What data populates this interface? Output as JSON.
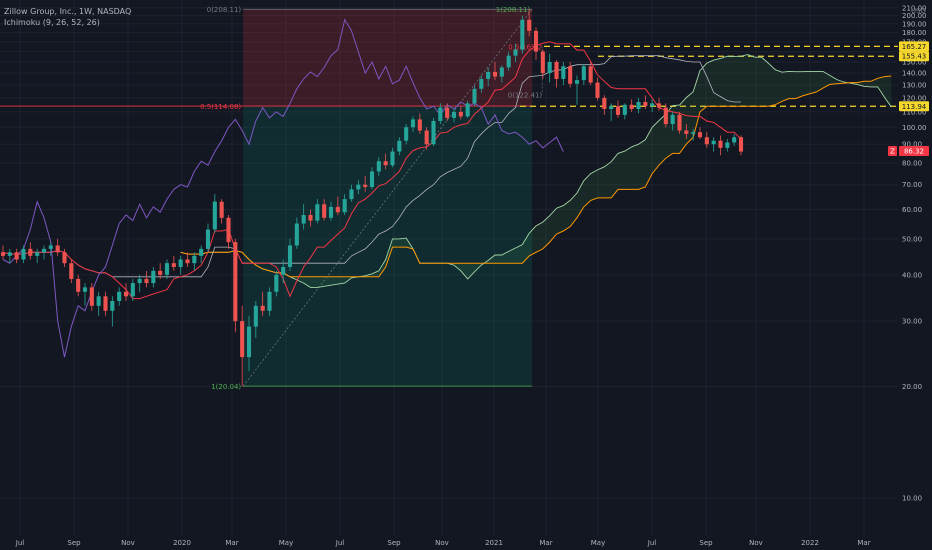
{
  "legend": {
    "title": "Zillow Group, Inc., 1W, NASDAQ",
    "indicator": "Ichimoku (9, 26, 52, 26)"
  },
  "chart_data": {
    "type": "candlestick",
    "currency": "USD",
    "y_scale": "log",
    "ylim": [
      8,
      215
    ],
    "x_ticks": [
      "Jul",
      "Sep",
      "Nov",
      "2020",
      "Mar",
      "May",
      "Jul",
      "Sep",
      "Nov",
      "2021",
      "Mar",
      "May",
      "Jul",
      "Sep",
      "Nov",
      "2022",
      "Mar"
    ],
    "y_ticks": [
      "210.00",
      "200.00",
      "190.00",
      "180.00",
      "170.00",
      "160.00",
      "150.00",
      "140.00",
      "130.00",
      "120.00",
      "110.00",
      "100.00",
      "90.00",
      "80.00",
      "70.00",
      "60.00",
      "50.00",
      "40.00",
      "30.00",
      "20.00",
      "10.00"
    ],
    "price_tags": [
      {
        "value": 165.27,
        "label": "165.27",
        "color": "#f6d72b"
      },
      {
        "value": 155.43,
        "label": "155.43",
        "color": "#f6d72b"
      },
      {
        "value": 113.94,
        "label": "113.94",
        "color": "#f6d72b"
      },
      {
        "value": 86.32,
        "label": "86.32",
        "color": "#f23645",
        "badge": "Z"
      }
    ],
    "fib_zones": {
      "range_top": 208.11,
      "range_mid": 114.08,
      "range_bottom": 20.04,
      "top_label": "0(208.11)",
      "top_label_right": "1(208.11)",
      "mid_label": "0.5(114.08)",
      "bottom_label": "1(20.04)",
      "second_mid_label": "0.5(165.2",
      "second_bottom_label": "0(122.41)",
      "second_mid_value": 165.27,
      "second_bottom_value": 122.41
    },
    "dashed_levels": [
      165.27,
      155.43,
      113.94
    ],
    "candles": [
      {
        "o": 46,
        "h": 48,
        "l": 44,
        "c": 45
      },
      {
        "o": 45,
        "h": 47,
        "l": 43,
        "c": 46
      },
      {
        "o": 46,
        "h": 47,
        "l": 43,
        "c": 44
      },
      {
        "o": 44,
        "h": 48,
        "l": 43,
        "c": 47
      },
      {
        "o": 47,
        "h": 49,
        "l": 44,
        "c": 45
      },
      {
        "o": 45,
        "h": 47,
        "l": 43,
        "c": 46
      },
      {
        "o": 46,
        "h": 48,
        "l": 44,
        "c": 47
      },
      {
        "o": 47,
        "h": 49,
        "l": 45,
        "c": 48
      },
      {
        "o": 48,
        "h": 50,
        "l": 45,
        "c": 46
      },
      {
        "o": 46,
        "h": 47,
        "l": 42,
        "c": 43
      },
      {
        "o": 43,
        "h": 44,
        "l": 38,
        "c": 39
      },
      {
        "o": 39,
        "h": 40,
        "l": 35,
        "c": 36
      },
      {
        "o": 36,
        "h": 38,
        "l": 33,
        "c": 37
      },
      {
        "o": 37,
        "h": 38,
        "l": 32,
        "c": 33
      },
      {
        "o": 33,
        "h": 36,
        "l": 31,
        "c": 35
      },
      {
        "o": 35,
        "h": 36,
        "l": 31,
        "c": 32
      },
      {
        "o": 32,
        "h": 35,
        "l": 29,
        "c": 34
      },
      {
        "o": 34,
        "h": 37,
        "l": 33,
        "c": 36
      },
      {
        "o": 36,
        "h": 38,
        "l": 34,
        "c": 35
      },
      {
        "o": 35,
        "h": 39,
        "l": 34,
        "c": 38
      },
      {
        "o": 38,
        "h": 40,
        "l": 36,
        "c": 39
      },
      {
        "o": 39,
        "h": 41,
        "l": 37,
        "c": 38
      },
      {
        "o": 38,
        "h": 42,
        "l": 37,
        "c": 41
      },
      {
        "o": 41,
        "h": 43,
        "l": 39,
        "c": 40
      },
      {
        "o": 40,
        "h": 44,
        "l": 39,
        "c": 43
      },
      {
        "o": 43,
        "h": 45,
        "l": 41,
        "c": 42
      },
      {
        "o": 42,
        "h": 45,
        "l": 40,
        "c": 44
      },
      {
        "o": 44,
        "h": 46,
        "l": 42,
        "c": 43
      },
      {
        "o": 43,
        "h": 46,
        "l": 41,
        "c": 45
      },
      {
        "o": 45,
        "h": 48,
        "l": 43,
        "c": 47
      },
      {
        "o": 47,
        "h": 55,
        "l": 46,
        "c": 53
      },
      {
        "o": 53,
        "h": 66,
        "l": 52,
        "c": 63
      },
      {
        "o": 63,
        "h": 64,
        "l": 55,
        "c": 57
      },
      {
        "o": 57,
        "h": 58,
        "l": 47,
        "c": 49
      },
      {
        "o": 49,
        "h": 50,
        "l": 28,
        "c": 30
      },
      {
        "o": 30,
        "h": 33,
        "l": 20,
        "c": 24
      },
      {
        "o": 24,
        "h": 31,
        "l": 22,
        "c": 29
      },
      {
        "o": 29,
        "h": 34,
        "l": 27,
        "c": 33
      },
      {
        "o": 33,
        "h": 36,
        "l": 31,
        "c": 32
      },
      {
        "o": 32,
        "h": 37,
        "l": 31,
        "c": 36
      },
      {
        "o": 36,
        "h": 41,
        "l": 35,
        "c": 40
      },
      {
        "o": 40,
        "h": 44,
        "l": 38,
        "c": 42
      },
      {
        "o": 42,
        "h": 50,
        "l": 41,
        "c": 48
      },
      {
        "o": 48,
        "h": 57,
        "l": 47,
        "c": 55
      },
      {
        "o": 55,
        "h": 62,
        "l": 53,
        "c": 58
      },
      {
        "o": 58,
        "h": 60,
        "l": 54,
        "c": 56
      },
      {
        "o": 56,
        "h": 64,
        "l": 55,
        "c": 62
      },
      {
        "o": 62,
        "h": 64,
        "l": 56,
        "c": 57
      },
      {
        "o": 57,
        "h": 63,
        "l": 56,
        "c": 61
      },
      {
        "o": 61,
        "h": 65,
        "l": 58,
        "c": 59
      },
      {
        "o": 59,
        "h": 66,
        "l": 58,
        "c": 64
      },
      {
        "o": 64,
        "h": 70,
        "l": 63,
        "c": 68
      },
      {
        "o": 68,
        "h": 72,
        "l": 66,
        "c": 70
      },
      {
        "o": 70,
        "h": 74,
        "l": 67,
        "c": 69
      },
      {
        "o": 69,
        "h": 78,
        "l": 68,
        "c": 76
      },
      {
        "o": 76,
        "h": 83,
        "l": 74,
        "c": 81
      },
      {
        "o": 81,
        "h": 85,
        "l": 77,
        "c": 79
      },
      {
        "o": 79,
        "h": 88,
        "l": 78,
        "c": 86
      },
      {
        "o": 86,
        "h": 94,
        "l": 84,
        "c": 92
      },
      {
        "o": 92,
        "h": 102,
        "l": 90,
        "c": 100
      },
      {
        "o": 100,
        "h": 107,
        "l": 97,
        "c": 105
      },
      {
        "o": 105,
        "h": 109,
        "l": 96,
        "c": 98
      },
      {
        "o": 98,
        "h": 100,
        "l": 87,
        "c": 90
      },
      {
        "o": 90,
        "h": 106,
        "l": 89,
        "c": 104
      },
      {
        "o": 104,
        "h": 116,
        "l": 102,
        "c": 113
      },
      {
        "o": 113,
        "h": 116,
        "l": 104,
        "c": 106
      },
      {
        "o": 106,
        "h": 112,
        "l": 103,
        "c": 110
      },
      {
        "o": 110,
        "h": 114,
        "l": 105,
        "c": 107
      },
      {
        "o": 107,
        "h": 118,
        "l": 106,
        "c": 116
      },
      {
        "o": 116,
        "h": 130,
        "l": 114,
        "c": 127
      },
      {
        "o": 127,
        "h": 138,
        "l": 124,
        "c": 135
      },
      {
        "o": 135,
        "h": 145,
        "l": 129,
        "c": 141
      },
      {
        "o": 141,
        "h": 150,
        "l": 134,
        "c": 137
      },
      {
        "o": 137,
        "h": 147,
        "l": 132,
        "c": 145
      },
      {
        "o": 145,
        "h": 160,
        "l": 142,
        "c": 156
      },
      {
        "o": 156,
        "h": 168,
        "l": 150,
        "c": 162
      },
      {
        "o": 162,
        "h": 200,
        "l": 158,
        "c": 195
      },
      {
        "o": 195,
        "h": 208,
        "l": 176,
        "c": 182
      },
      {
        "o": 182,
        "h": 186,
        "l": 152,
        "c": 160
      },
      {
        "o": 160,
        "h": 162,
        "l": 135,
        "c": 140
      },
      {
        "o": 140,
        "h": 158,
        "l": 132,
        "c": 150
      },
      {
        "o": 150,
        "h": 152,
        "l": 128,
        "c": 135
      },
      {
        "o": 135,
        "h": 150,
        "l": 130,
        "c": 146
      },
      {
        "o": 146,
        "h": 150,
        "l": 128,
        "c": 131
      },
      {
        "o": 131,
        "h": 138,
        "l": 115,
        "c": 134
      },
      {
        "o": 134,
        "h": 148,
        "l": 130,
        "c": 146
      },
      {
        "o": 146,
        "h": 150,
        "l": 130,
        "c": 132
      },
      {
        "o": 132,
        "h": 136,
        "l": 118,
        "c": 120
      },
      {
        "o": 120,
        "h": 122,
        "l": 108,
        "c": 112
      },
      {
        "o": 112,
        "h": 116,
        "l": 104,
        "c": 114
      },
      {
        "o": 114,
        "h": 118,
        "l": 106,
        "c": 108
      },
      {
        "o": 108,
        "h": 116,
        "l": 105,
        "c": 115
      },
      {
        "o": 115,
        "h": 119,
        "l": 110,
        "c": 112
      },
      {
        "o": 112,
        "h": 120,
        "l": 109,
        "c": 117
      },
      {
        "o": 117,
        "h": 122,
        "l": 112,
        "c": 114
      },
      {
        "o": 114,
        "h": 119,
        "l": 110,
        "c": 116
      },
      {
        "o": 116,
        "h": 120,
        "l": 111,
        "c": 113
      },
      {
        "o": 113,
        "h": 116,
        "l": 100,
        "c": 102
      },
      {
        "o": 102,
        "h": 110,
        "l": 98,
        "c": 108
      },
      {
        "o": 108,
        "h": 110,
        "l": 96,
        "c": 98
      },
      {
        "o": 98,
        "h": 102,
        "l": 93,
        "c": 96
      },
      {
        "o": 96,
        "h": 99,
        "l": 92,
        "c": 97
      },
      {
        "o": 97,
        "h": 100,
        "l": 93,
        "c": 94
      },
      {
        "o": 94,
        "h": 97,
        "l": 88,
        "c": 90
      },
      {
        "o": 90,
        "h": 94,
        "l": 86,
        "c": 92
      },
      {
        "o": 92,
        "h": 95,
        "l": 84,
        "c": 88
      },
      {
        "o": 88,
        "h": 93,
        "l": 86,
        "c": 91
      },
      {
        "o": 91,
        "h": 96,
        "l": 89,
        "c": 94
      },
      {
        "o": 94,
        "h": 95,
        "l": 84,
        "c": 86
      }
    ],
    "ichimoku": {
      "tenkan_color": "#f23645",
      "kijun_color": "#f23645",
      "chikou_color": "#7e57c2",
      "span_a_color": "#a5d6a7",
      "span_b_color": "#ff9800"
    }
  }
}
